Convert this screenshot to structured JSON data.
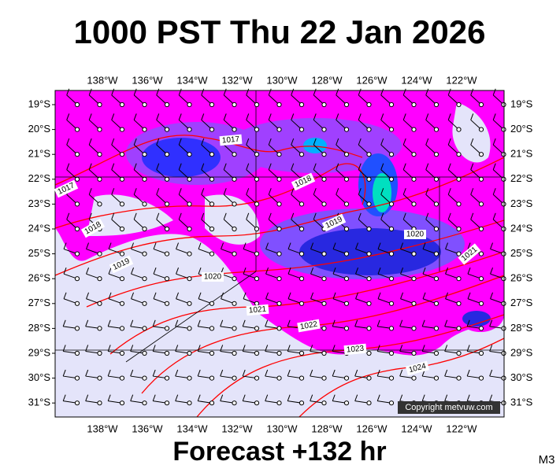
{
  "header": {
    "title": "1000 PST Thu 22 Jan 2026"
  },
  "map": {
    "lon_labels": [
      "138°W",
      "136°W",
      "134°W",
      "132°W",
      "130°W",
      "128°W",
      "126°W",
      "124°W",
      "122°W"
    ],
    "lat_labels": [
      "19°S",
      "20°S",
      "21°S",
      "22°S",
      "23°S",
      "24°S",
      "25°S",
      "26°S",
      "27°S",
      "28°S",
      "29°S",
      "30°S",
      "31°S"
    ],
    "isobar_labels": [
      1017,
      1018,
      1017,
      1018,
      1019,
      1020,
      1019,
      1020,
      1021,
      1021,
      1022,
      1023,
      1024
    ],
    "copyright": "Copyright metvuw.com"
  },
  "footer": {
    "forecast": "Forecast +132 hr",
    "model": "M3"
  }
}
